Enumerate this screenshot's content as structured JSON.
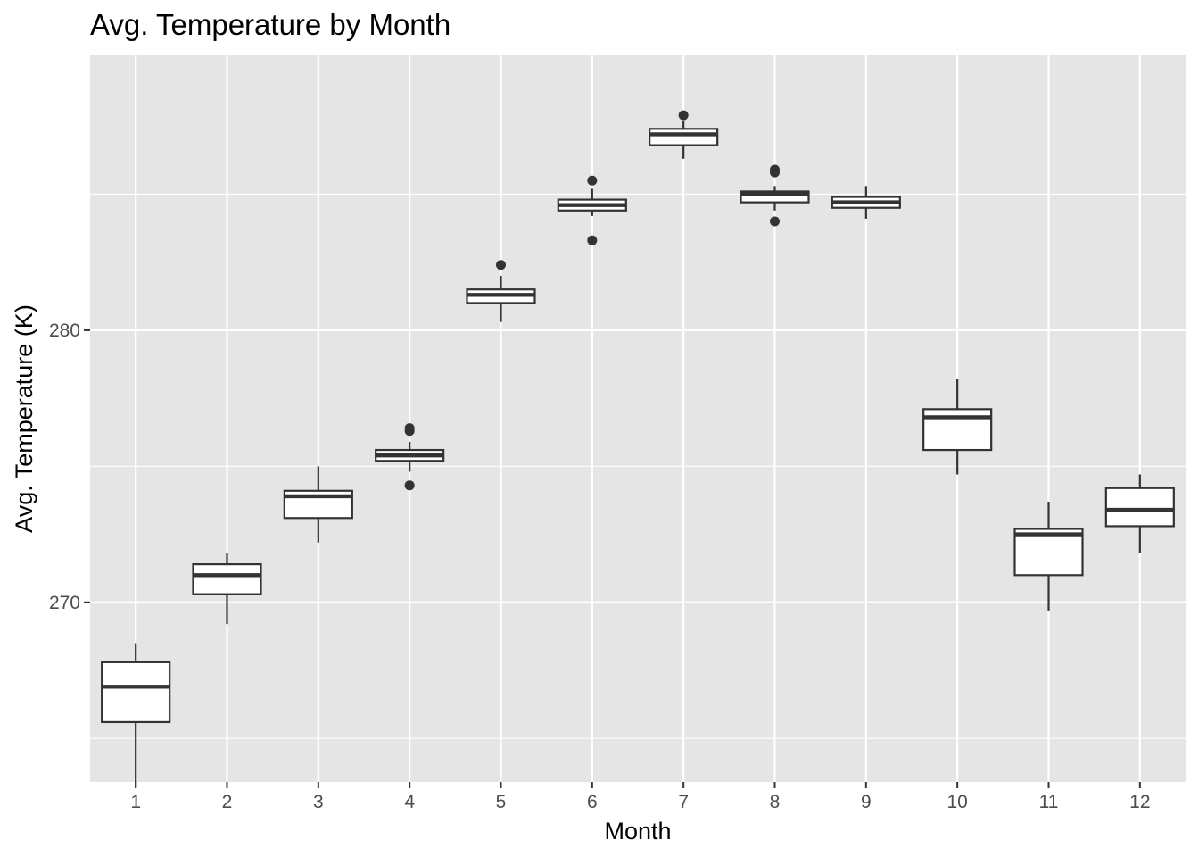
{
  "chart_data": {
    "type": "boxplot",
    "title": "Avg. Temperature by Month",
    "xlabel": "Month",
    "ylabel": "Avg. Temperature (K)",
    "categories": [
      "1",
      "2",
      "3",
      "4",
      "5",
      "6",
      "7",
      "8",
      "9",
      "10",
      "11",
      "12"
    ],
    "ylim": [
      263.4,
      290.1
    ],
    "yticks": [
      270,
      280
    ],
    "y_minor_gridlines": [
      265,
      275,
      285
    ],
    "grid": true,
    "legend": "none",
    "boxes": [
      {
        "month": "1",
        "whisker_low": 263.2,
        "q1": 265.6,
        "median": 266.9,
        "q3": 267.8,
        "whisker_high": 268.5,
        "outliers": []
      },
      {
        "month": "2",
        "whisker_low": 269.2,
        "q1": 270.3,
        "median": 271.0,
        "q3": 271.4,
        "whisker_high": 271.8,
        "outliers": []
      },
      {
        "month": "3",
        "whisker_low": 272.2,
        "q1": 273.1,
        "median": 273.9,
        "q3": 274.1,
        "whisker_high": 275.0,
        "outliers": []
      },
      {
        "month": "4",
        "whisker_low": 274.8,
        "q1": 275.2,
        "median": 275.4,
        "q3": 275.6,
        "whisker_high": 275.9,
        "outliers": [
          274.3,
          276.3,
          276.4
        ]
      },
      {
        "month": "5",
        "whisker_low": 280.3,
        "q1": 281.0,
        "median": 281.3,
        "q3": 281.5,
        "whisker_high": 282.0,
        "outliers": [
          282.4
        ]
      },
      {
        "month": "6",
        "whisker_low": 284.2,
        "q1": 284.4,
        "median": 284.6,
        "q3": 284.8,
        "whisker_high": 285.2,
        "outliers": [
          283.3,
          285.5
        ]
      },
      {
        "month": "7",
        "whisker_low": 286.3,
        "q1": 286.8,
        "median": 287.2,
        "q3": 287.4,
        "whisker_high": 287.7,
        "outliers": [
          287.9
        ]
      },
      {
        "month": "8",
        "whisker_low": 284.4,
        "q1": 284.7,
        "median": 285.0,
        "q3": 285.1,
        "whisker_high": 285.3,
        "outliers": [
          284.0,
          285.8,
          285.9
        ]
      },
      {
        "month": "9",
        "whisker_low": 284.1,
        "q1": 284.5,
        "median": 284.7,
        "q3": 284.9,
        "whisker_high": 285.3,
        "outliers": []
      },
      {
        "month": "10",
        "whisker_low": 274.7,
        "q1": 275.6,
        "median": 276.8,
        "q3": 277.1,
        "whisker_high": 278.2,
        "outliers": []
      },
      {
        "month": "11",
        "whisker_low": 269.7,
        "q1": 271.0,
        "median": 272.5,
        "q3": 272.7,
        "whisker_high": 273.7,
        "outliers": []
      },
      {
        "month": "12",
        "whisker_low": 271.8,
        "q1": 272.8,
        "median": 273.4,
        "q3": 274.2,
        "whisker_high": 274.7,
        "outliers": []
      }
    ],
    "colors": {
      "panel_background": "#e5e5e5",
      "gridline": "#ffffff",
      "box_fill": "#ffffff",
      "box_stroke": "#333333",
      "outlier": "#333333",
      "tick": "#333333",
      "tick_label": "#4d4d4d",
      "text": "#000000"
    }
  }
}
